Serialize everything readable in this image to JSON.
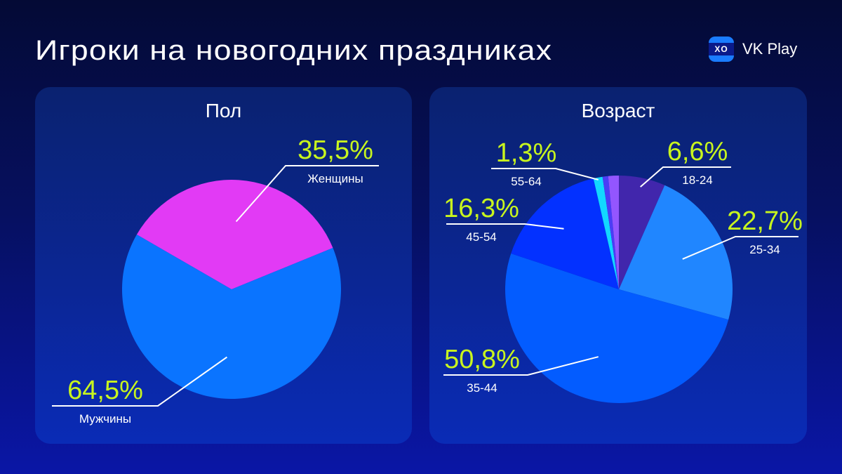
{
  "header": {
    "title": "Игроки на новогодних праздниках",
    "brand": {
      "logo_icon": "xo-gamepad-icon",
      "logo_glyph": "XO",
      "name": "VK Play"
    }
  },
  "colors": {
    "accent_label": "#c8f51e",
    "background_top": "#040a35",
    "background_bottom": "#0a16a6",
    "card": "#0b2694"
  },
  "chart_data": [
    {
      "type": "pie",
      "title": "Пол",
      "categories": [
        "Женщины",
        "Мужчины"
      ],
      "values": [
        35.5,
        64.5
      ],
      "value_labels": [
        "35,5%",
        "64,5%"
      ],
      "colors": [
        "#e23af5",
        "#0a74ff"
      ],
      "legend": "none (leader-line labels)"
    },
    {
      "type": "pie",
      "title": "Возраст",
      "categories": [
        "18-24",
        "25-34",
        "35-44",
        "45-54",
        "55-64",
        "",
        ""
      ],
      "values": [
        6.6,
        22.7,
        50.8,
        16.3,
        1.3,
        0.8,
        1.5
      ],
      "value_labels": [
        "6,6%",
        "22,7%",
        "50,8%",
        "16,3%",
        "1,3%",
        "",
        ""
      ],
      "colors": [
        "#4126ac",
        "#2086ff",
        "#035cff",
        "#0331ff",
        "#12d8ff",
        "#4b3df6",
        "#9356ff"
      ],
      "legend": "none (leader-line labels)"
    }
  ],
  "cards": {
    "gender": {
      "title": "Пол"
    },
    "age": {
      "title": "Возраст"
    }
  }
}
